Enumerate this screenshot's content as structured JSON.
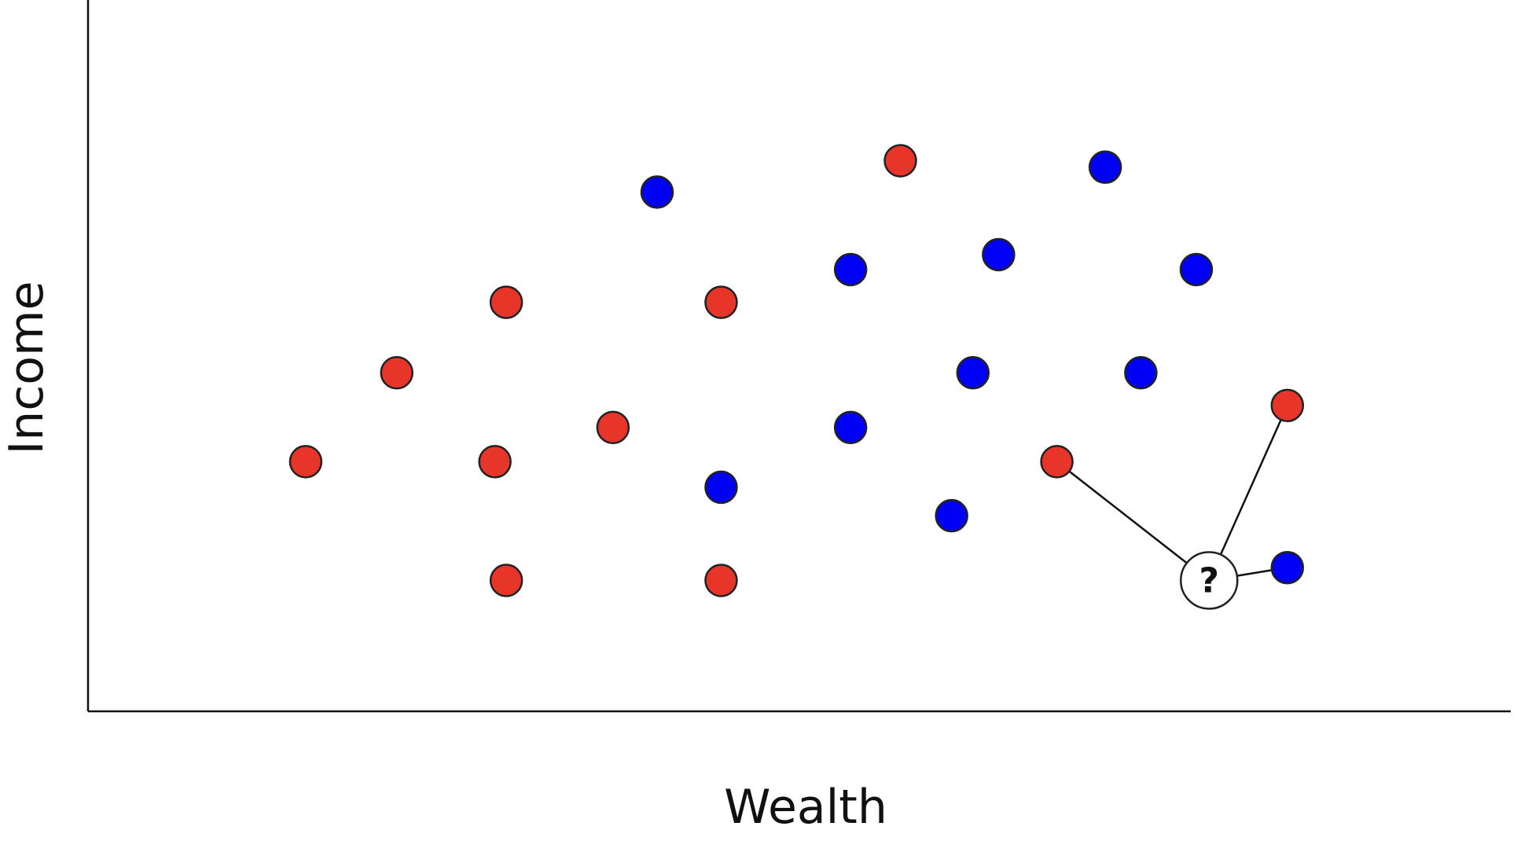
{
  "chart_data": {
    "type": "scatter",
    "xlabel": "Wealth",
    "ylabel": "Income",
    "xlim": [
      0,
      100
    ],
    "ylim": [
      0,
      100
    ],
    "grid": false,
    "legend": "none",
    "colors": {
      "red": "#e8352a",
      "blue": "#0000f5"
    },
    "series": [
      {
        "color_key": "red",
        "points": [
          {
            "x": 15.3,
            "y": 35.1
          },
          {
            "x": 21.7,
            "y": 47.6
          },
          {
            "x": 29.4,
            "y": 18.4
          },
          {
            "x": 28.6,
            "y": 35.1
          },
          {
            "x": 29.4,
            "y": 57.5
          },
          {
            "x": 36.9,
            "y": 39.9
          },
          {
            "x": 44.5,
            "y": 57.5
          },
          {
            "x": 44.5,
            "y": 18.4
          },
          {
            "x": 57.1,
            "y": 77.4
          },
          {
            "x": 68.1,
            "y": 35.1
          },
          {
            "x": 84.3,
            "y": 43.0
          }
        ]
      },
      {
        "color_key": "blue",
        "points": [
          {
            "x": 40.0,
            "y": 73.0
          },
          {
            "x": 44.5,
            "y": 31.5
          },
          {
            "x": 53.6,
            "y": 62.1
          },
          {
            "x": 53.6,
            "y": 39.9
          },
          {
            "x": 60.7,
            "y": 27.5
          },
          {
            "x": 62.2,
            "y": 47.6
          },
          {
            "x": 64.0,
            "y": 64.2
          },
          {
            "x": 71.5,
            "y": 76.5
          },
          {
            "x": 74.0,
            "y": 47.6
          },
          {
            "x": 77.9,
            "y": 62.1
          },
          {
            "x": 84.3,
            "y": 20.2
          }
        ]
      }
    ],
    "query": {
      "label": "?",
      "x": 78.8,
      "y": 18.4,
      "neighbors": [
        {
          "x": 68.1,
          "y": 35.1
        },
        {
          "x": 84.3,
          "y": 43.0
        },
        {
          "x": 84.3,
          "y": 20.2
        }
      ]
    }
  }
}
